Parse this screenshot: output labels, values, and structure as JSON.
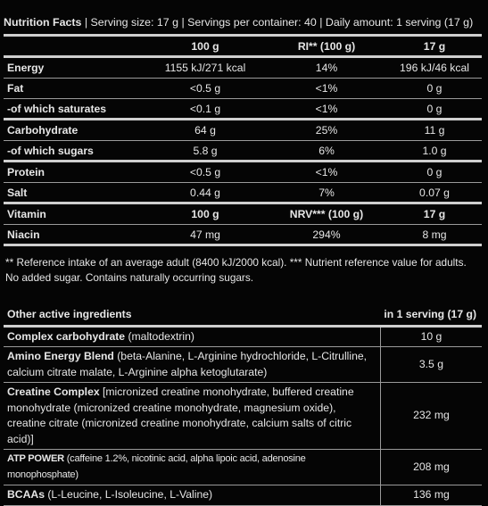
{
  "header": {
    "title": "Nutrition Facts",
    "serving_size": "Serving size: 17 g",
    "servings": "Servings per container: 40",
    "daily": "Daily amount: 1 serving (17 g)"
  },
  "nutrition_table": {
    "columns": [
      "",
      "100 g",
      "RI** (100 g)",
      "17 g"
    ],
    "rows": [
      {
        "name": "Energy",
        "c1": "1155 kJ/271 kcal",
        "c2": "14%",
        "c3": "196 kJ/46 kcal"
      },
      {
        "name": "Fat",
        "c1": "<0.5 g",
        "c2": "<1%",
        "c3": "0 g"
      },
      {
        "name": "-of which saturates",
        "c1": "<0.1 g",
        "c2": "<1%",
        "c3": "0 g"
      },
      {
        "name": "Carbohydrate",
        "c1": "64 g",
        "c2": "25%",
        "c3": "11 g"
      },
      {
        "name": "-of which sugars",
        "c1": "5.8 g",
        "c2": "6%",
        "c3": "1.0 g"
      },
      {
        "name": "Protein",
        "c1": "<0.5 g",
        "c2": "<1%",
        "c3": "0 g"
      },
      {
        "name": "Salt",
        "c1": "0.44 g",
        "c2": "7%",
        "c3": "0.07 g"
      }
    ],
    "vitamin_header": {
      "name": "Vitamin",
      "c1": "100 g",
      "c2": "NRV*** (100 g)",
      "c3": "17 g"
    },
    "vitamin_rows": [
      {
        "name": "Niacin",
        "c1": "47 mg",
        "c2": "294%",
        "c3": "8 mg"
      }
    ]
  },
  "footnote": {
    "line1": "** Reference intake of an average adult (8400 kJ/2000 kcal). *** Nutrient reference value for adults.",
    "line2": "No added sugar. Contains naturally occurring sugars."
  },
  "other_ingredients": {
    "title": "Other active ingredients",
    "serving_label": "in 1 serving (17 g)",
    "rows": [
      {
        "name": "Complex carbohydrate",
        "detail": " (maltodextrin)",
        "amount": "10 g"
      },
      {
        "name": "Amino Energy Blend",
        "detail": " (beta-Alanine, L-Arginine hydrochloride, L-Citrulline, calcium citrate malate, L-Arginine alpha ketoglutarate)",
        "amount": "3.5 g"
      },
      {
        "name": "Creatine Complex",
        "detail": " [micronized creatine monohydrate, buffered creatine monohydrate (micronized creatine monohydrate, magnesium oxide), creatine citrate (micronized creatine monohydrate, calcium salts of citric acid)]",
        "amount": "232 mg"
      },
      {
        "name": "ATP POWER",
        "detail": " (caffeine 1.2%, nicotinic acid, alpha lipoic acid, adenosine monophosphate)",
        "amount": "208 mg"
      },
      {
        "name": "BCAAs",
        "detail": " (L-Leucine, L-Isoleucine, L-Valine)",
        "amount": "136 mg"
      }
    ]
  }
}
